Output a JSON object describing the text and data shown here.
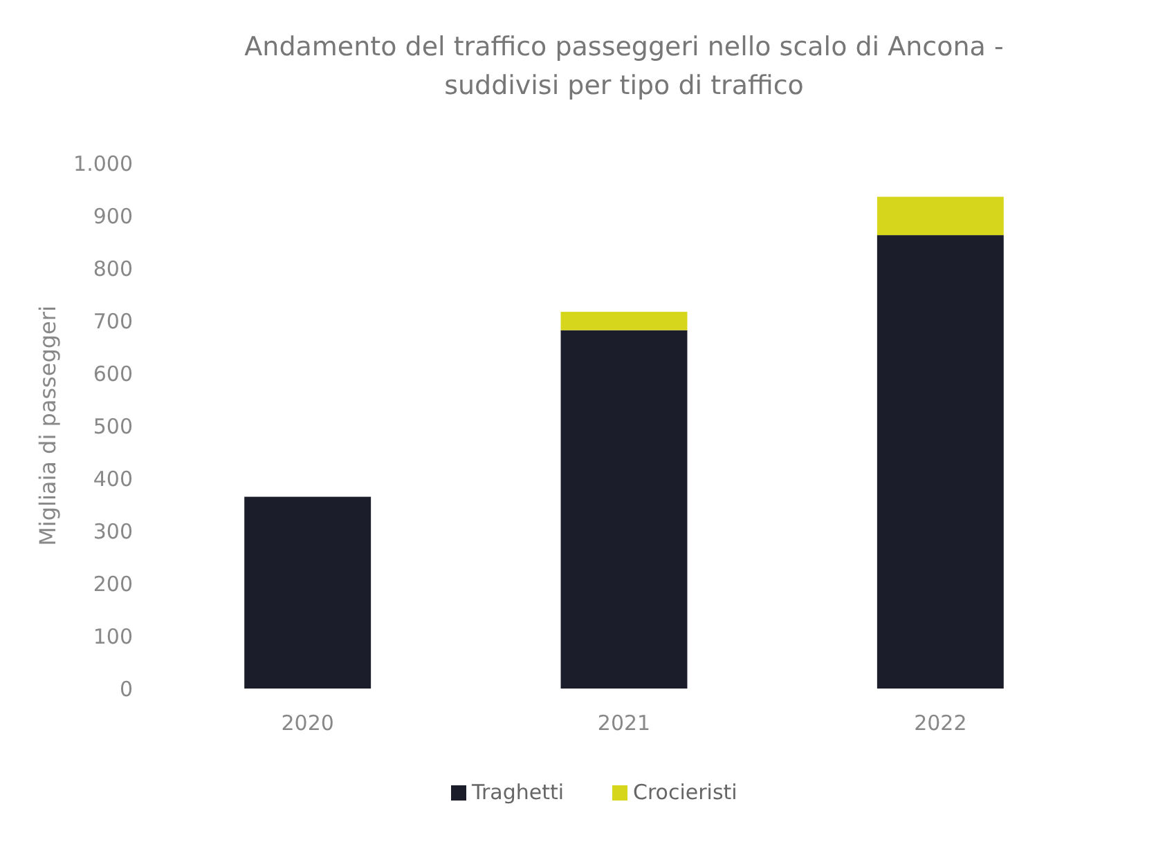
{
  "chart_data": {
    "type": "bar",
    "title": "Andamento del traffico passeggeri nello scalo di Ancona - suddivisi per tipo di traffico",
    "ylabel": "Migliaia di passeggeri",
    "categories": [
      "2020",
      "2021",
      "2022"
    ],
    "stacked": true,
    "series": [
      {
        "name": "Traghetti",
        "color": "#1b1d2b",
        "values": [
          365,
          682,
          863
        ]
      },
      {
        "name": "Crocieristi",
        "color": "#d6d61c",
        "values": [
          0,
          35,
          73
        ]
      }
    ],
    "ylim": [
      0,
      1000
    ],
    "yticks": [
      0,
      100,
      200,
      300,
      400,
      500,
      600,
      700,
      800,
      900,
      {
        "value": 1000,
        "label": "1.000"
      }
    ],
    "grid": false,
    "legend": "bottom"
  }
}
